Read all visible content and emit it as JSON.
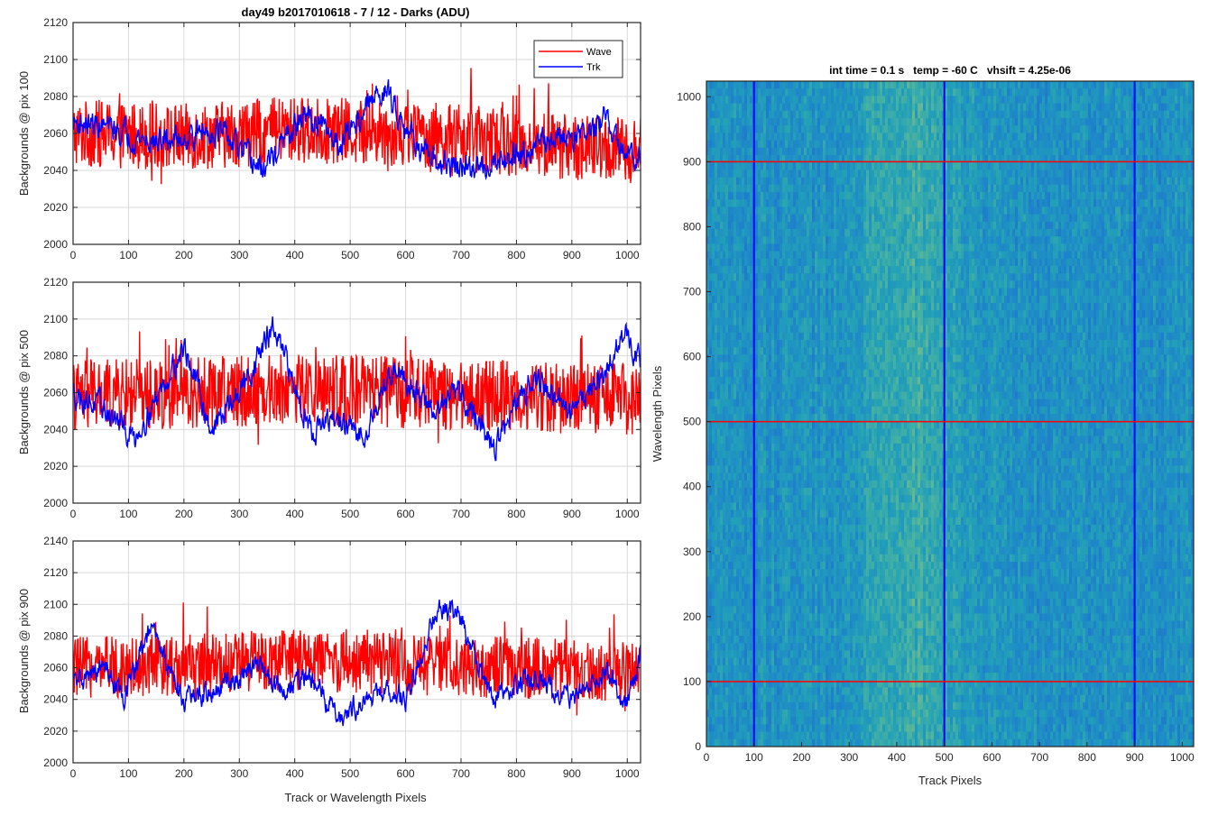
{
  "figure": {
    "title": "day49 b2017010618 - 7 / 12 - Darks (ADU)",
    "xlabel": "Track or Wavelength Pixels"
  },
  "colors": {
    "wave": "#ff0000",
    "trk": "#0000ff",
    "grid": "#d9d9d9",
    "axes": "#262626"
  },
  "chart_data": [
    {
      "type": "line",
      "ylabel": "Backgrounds @ pix 100",
      "xlim": [
        0,
        1024
      ],
      "ylim": [
        2000,
        2120
      ],
      "xticks": [
        0,
        100,
        200,
        300,
        400,
        500,
        600,
        700,
        800,
        900,
        1000
      ],
      "yticks": [
        2000,
        2020,
        2040,
        2060,
        2080,
        2100,
        2120
      ],
      "grid": true,
      "legend": {
        "placement": "top-right",
        "entries": [
          "Wave",
          "Trk"
        ]
      },
      "series": [
        {
          "name": "Wave",
          "color": "#ff0000",
          "mean": 2058,
          "noise": 14,
          "spikes": 10,
          "anchors": [
            [
              0,
              2060
            ],
            [
              200,
              2058
            ],
            [
              400,
              2062
            ],
            [
              600,
              2060
            ],
            [
              800,
              2055
            ],
            [
              1024,
              2050
            ]
          ]
        },
        {
          "name": "Trk",
          "color": "#0000ff",
          "mean": 2058,
          "noise": 5,
          "spikes": 0,
          "anchors": [
            [
              0,
              2066
            ],
            [
              50,
              2064
            ],
            [
              150,
              2055
            ],
            [
              260,
              2062
            ],
            [
              340,
              2040
            ],
            [
              420,
              2070
            ],
            [
              480,
              2055
            ],
            [
              560,
              2085
            ],
            [
              640,
              2045
            ],
            [
              720,
              2040
            ],
            [
              800,
              2050
            ],
            [
              880,
              2058
            ],
            [
              940,
              2062
            ],
            [
              960,
              2068
            ],
            [
              1000,
              2045
            ],
            [
              1024,
              2052
            ]
          ]
        }
      ]
    },
    {
      "type": "line",
      "ylabel": "Backgrounds @ pix 500",
      "xlim": [
        0,
        1024
      ],
      "ylim": [
        2000,
        2120
      ],
      "xticks": [
        0,
        100,
        200,
        300,
        400,
        500,
        600,
        700,
        800,
        900,
        1000
      ],
      "yticks": [
        2000,
        2020,
        2040,
        2060,
        2080,
        2100,
        2120
      ],
      "grid": true,
      "series": [
        {
          "name": "Wave",
          "color": "#ff0000",
          "mean": 2060,
          "noise": 15,
          "spikes": 10,
          "anchors": [
            [
              0,
              2058
            ],
            [
              200,
              2060
            ],
            [
              400,
              2062
            ],
            [
              600,
              2060
            ],
            [
              800,
              2058
            ],
            [
              1024,
              2056
            ]
          ]
        },
        {
          "name": "Trk",
          "color": "#0000ff",
          "mean": 2055,
          "noise": 5,
          "spikes": 0,
          "anchors": [
            [
              0,
              2060
            ],
            [
              60,
              2050
            ],
            [
              110,
              2035
            ],
            [
              200,
              2085
            ],
            [
              250,
              2040
            ],
            [
              300,
              2060
            ],
            [
              360,
              2095
            ],
            [
              430,
              2040
            ],
            [
              480,
              2045
            ],
            [
              520,
              2035
            ],
            [
              580,
              2075
            ],
            [
              650,
              2050
            ],
            [
              700,
              2060
            ],
            [
              760,
              2030
            ],
            [
              830,
              2070
            ],
            [
              890,
              2050
            ],
            [
              960,
              2070
            ],
            [
              990,
              2090
            ],
            [
              1024,
              2080
            ]
          ]
        }
      ]
    },
    {
      "type": "line",
      "ylabel": "Backgrounds @ pix 900",
      "xlim": [
        0,
        1024
      ],
      "ylim": [
        2000,
        2140
      ],
      "xticks": [
        0,
        100,
        200,
        300,
        400,
        500,
        600,
        700,
        800,
        900,
        1000
      ],
      "yticks": [
        2000,
        2020,
        2040,
        2060,
        2080,
        2100,
        2120,
        2140
      ],
      "grid": true,
      "series": [
        {
          "name": "Wave",
          "color": "#ff0000",
          "mean": 2062,
          "noise": 15,
          "spikes": 10,
          "anchors": [
            [
              0,
              2060
            ],
            [
              200,
              2062
            ],
            [
              400,
              2065
            ],
            [
              600,
              2062
            ],
            [
              800,
              2060
            ],
            [
              1024,
              2058
            ]
          ]
        },
        {
          "name": "Trk",
          "color": "#0000ff",
          "mean": 2050,
          "noise": 5,
          "spikes": 0,
          "anchors": [
            [
              0,
              2050
            ],
            [
              60,
              2060
            ],
            [
              90,
              2040
            ],
            [
              140,
              2085
            ],
            [
              200,
              2040
            ],
            [
              260,
              2045
            ],
            [
              330,
              2062
            ],
            [
              380,
              2045
            ],
            [
              420,
              2055
            ],
            [
              480,
              2030
            ],
            [
              560,
              2045
            ],
            [
              600,
              2040
            ],
            [
              660,
              2100
            ],
            [
              700,
              2090
            ],
            [
              760,
              2040
            ],
            [
              830,
              2055
            ],
            [
              900,
              2040
            ],
            [
              960,
              2060
            ],
            [
              1000,
              2035
            ],
            [
              1024,
              2070
            ]
          ]
        }
      ]
    },
    {
      "type": "heatmap",
      "title": "int time = 0.1 s   temp = -60 C   vhsift = 4.25e-06",
      "xlabel": "Track Pixels",
      "ylabel": "Wavelength Pixels",
      "xlim": [
        0,
        1024
      ],
      "ylim": [
        0,
        1024
      ],
      "xticks": [
        0,
        100,
        200,
        300,
        400,
        500,
        600,
        700,
        800,
        900,
        1000
      ],
      "yticks": [
        0,
        100,
        200,
        300,
        400,
        500,
        600,
        700,
        800,
        900,
        1000
      ],
      "colormap": [
        "#1f6fcf",
        "#1e88c8",
        "#22a0b8",
        "#4ab3a0",
        "#8fbf7a"
      ],
      "vertical_lines": [
        100,
        500,
        900
      ],
      "horizontal_lines": [
        100,
        500,
        900
      ],
      "vertical_line_color": "#0000ff",
      "horizontal_line_color": "#ff0000"
    }
  ]
}
